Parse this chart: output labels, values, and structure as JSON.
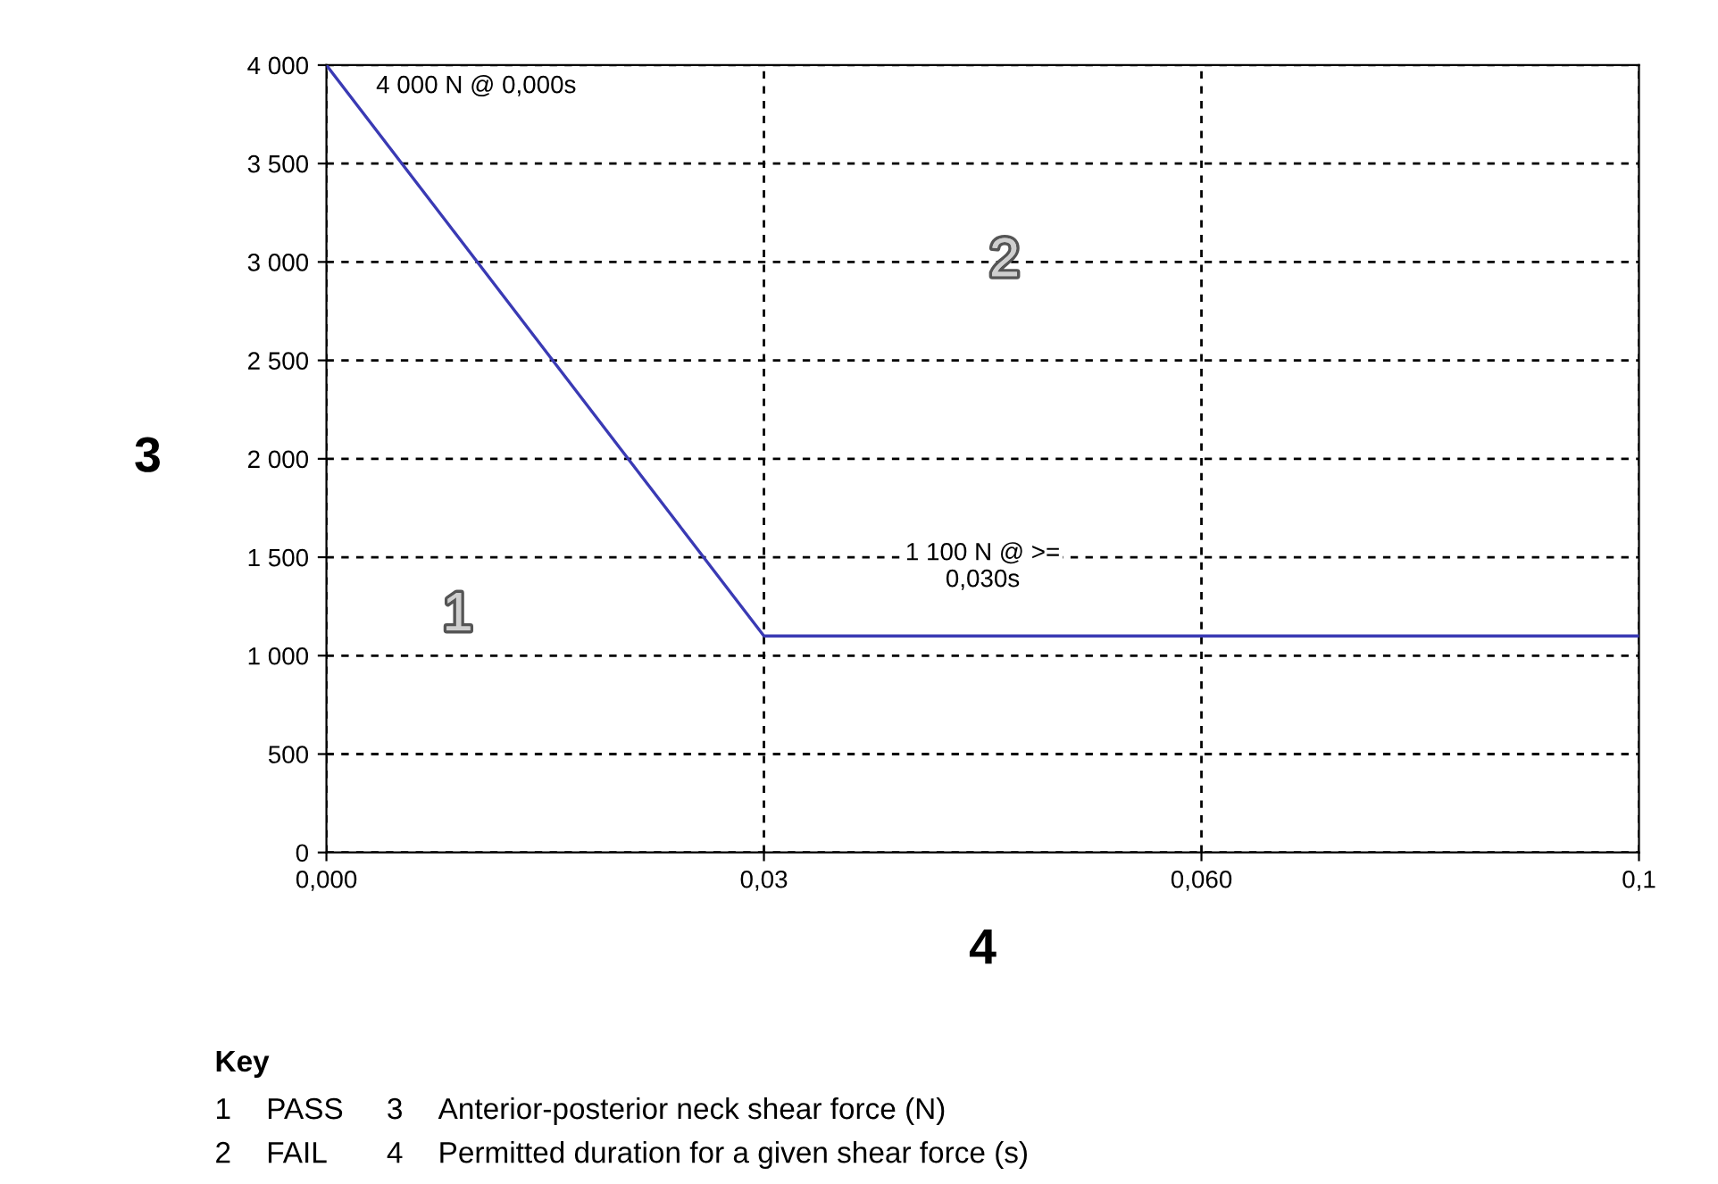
{
  "chart_data": {
    "type": "line",
    "categories": [
      "0,000",
      "0,03",
      "0,060",
      "0,1"
    ],
    "series": [
      {
        "color": "#3a3ab4",
        "values": [
          4000,
          1100,
          1100,
          1100
        ]
      }
    ],
    "ylim": [
      0,
      4000
    ],
    "yticks": [
      0,
      500,
      {
        "value": 1000,
        "label": "1 000"
      },
      {
        "value": 1500,
        "label": "1 500"
      },
      {
        "value": 2000,
        "label": "2 000"
      },
      {
        "value": 2500,
        "label": "2 500"
      },
      {
        "value": 3000,
        "label": "3 000"
      },
      {
        "value": 3500,
        "label": "3 500"
      },
      {
        "value": 4000,
        "label": "4 000"
      }
    ],
    "xlabel": "4",
    "ylabel": "3",
    "grid": true,
    "line_style": "solid",
    "marker": "none",
    "annotations": [
      {
        "text": "4 000 N @ 0,000s",
        "x": "0,000",
        "y": 4000
      },
      "1 100 N @ >=\n0,030s",
      "1",
      "2",
      "Key",
      "1",
      "PASS",
      "3",
      "Anterior-posterior neck shear force (N)",
      "2",
      "FAIL",
      "4",
      "Permitted duration for a given shear force (s)"
    ]
  }
}
